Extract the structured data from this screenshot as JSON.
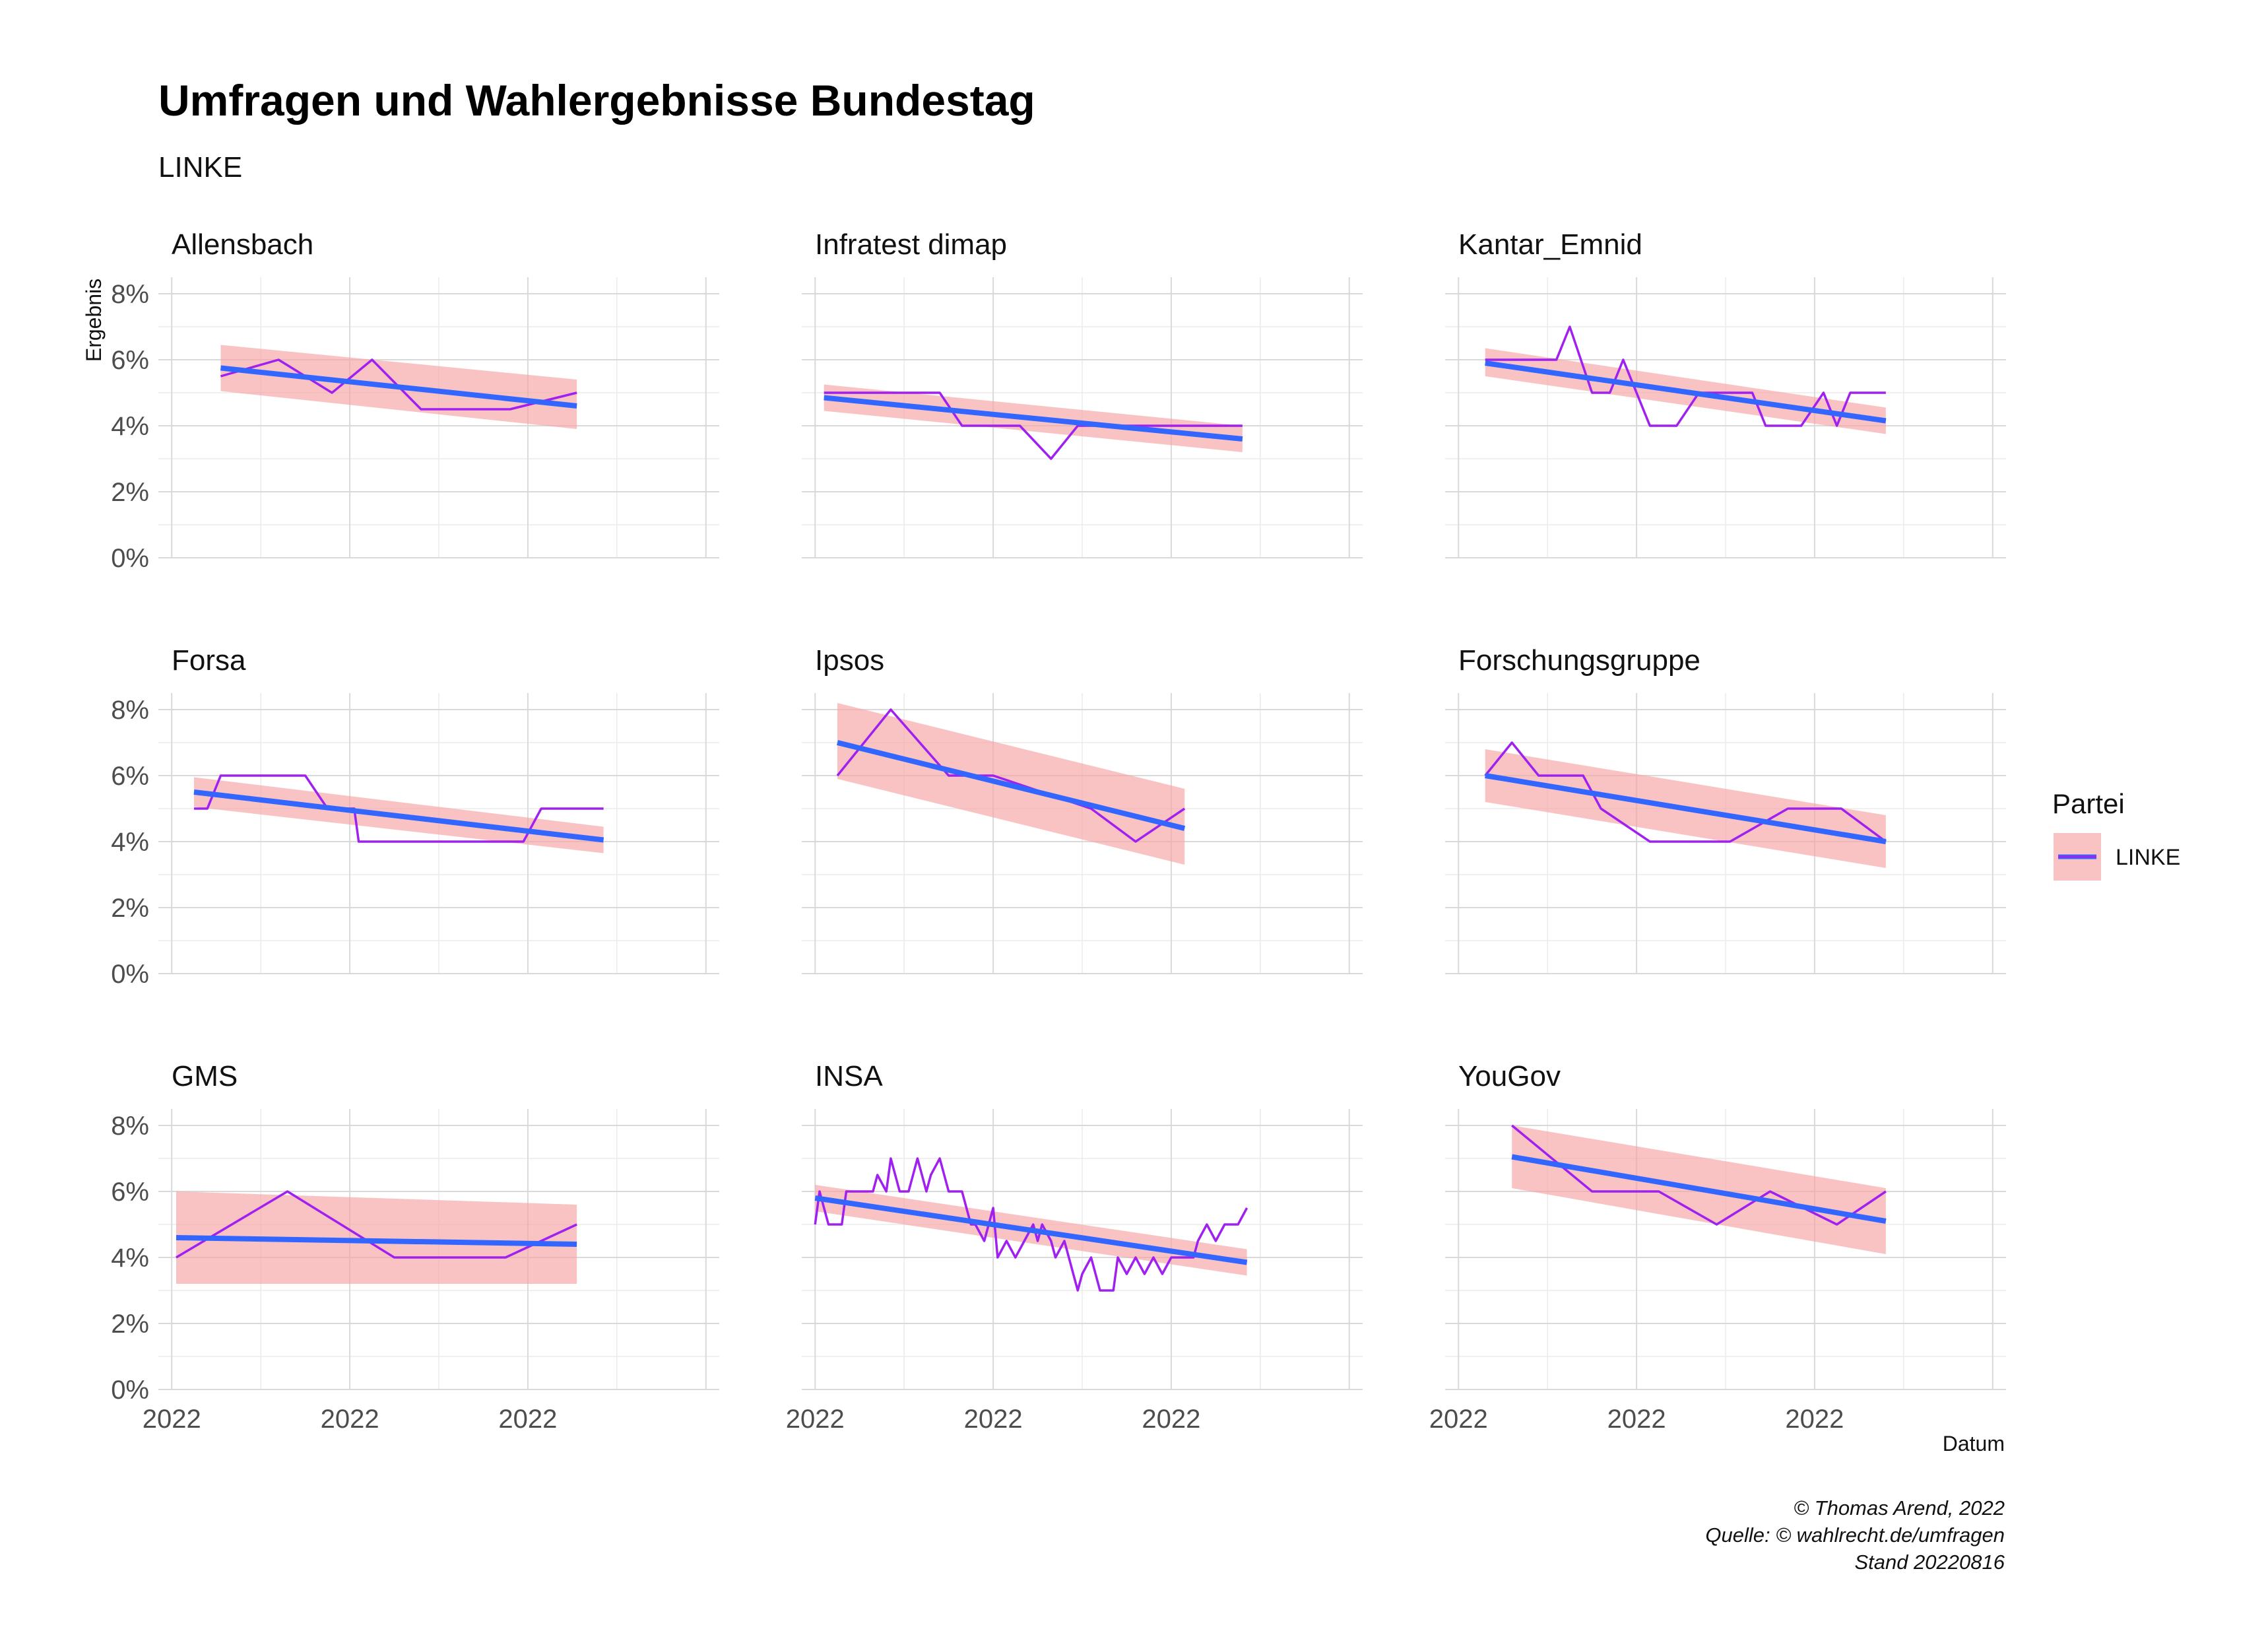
{
  "title": "Umfragen und Wahlergebnisse Bundestag",
  "subtitle": "LINKE",
  "caption": [
    "© Thomas Arend, 2022",
    "Quelle: © wahlrecht.de/umfragen",
    "Stand 20220816"
  ],
  "legend": {
    "title": "Partei",
    "entries": [
      {
        "label": "LINKE",
        "line_color": "#a020f0",
        "trend_color": "#3366ff",
        "ribbon_color": "#f8a3a3"
      }
    ]
  },
  "colors": {
    "series": "#a020f0",
    "trend": "#3366ff",
    "ribbon": "#f8a3a3"
  },
  "chart_data": {
    "type": "line",
    "facet_layout": "3x3",
    "ylabel": "Ergebnis",
    "xlabel": "Datum",
    "ylim": [
      0,
      8.5
    ],
    "xlim": [
      -0.3,
      12.3
    ],
    "yticks": [
      0,
      2,
      4,
      6,
      8
    ],
    "ytick_labels": [
      "0%",
      "2%",
      "4%",
      "6%",
      "8%"
    ],
    "xticks": [
      0,
      4,
      8,
      12
    ],
    "xtick_labels": [
      "2022",
      "2022",
      "2022",
      ""
    ],
    "grid": true,
    "legend_position": "right",
    "panels": [
      {
        "name": "Allensbach",
        "x": [
          1.1,
          2.4,
          3.6,
          4.5,
          5.6,
          6.5,
          7.6,
          8.2,
          9.1
        ],
        "y": [
          5.5,
          6.0,
          5.0,
          6.0,
          4.5,
          4.5,
          4.5,
          4.7,
          5.0
        ],
        "trend": {
          "x": [
            1.1,
            9.1
          ],
          "y": [
            5.75,
            4.6
          ],
          "lo": [
            5.05,
            3.9
          ],
          "hi": [
            6.45,
            5.4
          ]
        }
      },
      {
        "name": "Infratest dimap",
        "x": [
          0.2,
          2.8,
          3.3,
          4.6,
          5.3,
          5.9,
          7.2,
          7.7,
          9.6
        ],
        "y": [
          5.0,
          5.0,
          4.0,
          4.0,
          3.0,
          4.0,
          4.0,
          4.0,
          4.0
        ],
        "trend": {
          "x": [
            0.2,
            9.6
          ],
          "y": [
            4.85,
            3.6
          ],
          "lo": [
            4.45,
            3.2
          ],
          "hi": [
            5.25,
            4.0
          ]
        }
      },
      {
        "name": "Kantar_Emnid",
        "x": [
          0.6,
          2.2,
          2.5,
          3.0,
          3.4,
          3.7,
          4.3,
          4.9,
          5.4,
          6.6,
          6.9,
          7.7,
          8.2,
          8.5,
          8.8,
          9.6
        ],
        "y": [
          6.0,
          6.0,
          7.0,
          5.0,
          5.0,
          6.0,
          4.0,
          4.0,
          5.0,
          5.0,
          4.0,
          4.0,
          5.0,
          4.0,
          5.0,
          5.0
        ],
        "trend": {
          "x": [
            0.6,
            9.6
          ],
          "y": [
            5.9,
            4.15
          ],
          "lo": [
            5.5,
            3.75
          ],
          "hi": [
            6.35,
            4.55
          ]
        }
      },
      {
        "name": "Forsa",
        "x": [
          0.5,
          0.8,
          1.1,
          3.0,
          3.5,
          4.1,
          4.2,
          7.9,
          8.3,
          9.7
        ],
        "y": [
          5.0,
          5.0,
          6.0,
          6.0,
          5.0,
          5.0,
          4.0,
          4.0,
          5.0,
          5.0
        ],
        "trend": {
          "x": [
            0.5,
            9.7
          ],
          "y": [
            5.5,
            4.05
          ],
          "lo": [
            5.05,
            3.65
          ],
          "hi": [
            5.95,
            4.45
          ]
        }
      },
      {
        "name": "Ipsos",
        "x": [
          0.5,
          1.7,
          3.0,
          4.0,
          6.2,
          7.2,
          8.3
        ],
        "y": [
          6.0,
          8.0,
          6.0,
          6.0,
          5.0,
          4.0,
          5.0
        ],
        "trend": {
          "x": [
            0.5,
            8.3
          ],
          "y": [
            7.0,
            4.4
          ],
          "lo": [
            5.9,
            3.3
          ],
          "hi": [
            8.2,
            5.6
          ]
        }
      },
      {
        "name": "Forschungsgruppe",
        "x": [
          0.6,
          1.2,
          1.8,
          2.8,
          3.2,
          4.3,
          6.1,
          7.4,
          8.6,
          9.6
        ],
        "y": [
          6.0,
          7.0,
          6.0,
          6.0,
          5.0,
          4.0,
          4.0,
          5.0,
          5.0,
          4.0
        ],
        "trend": {
          "x": [
            0.6,
            9.6
          ],
          "y": [
            6.0,
            4.0
          ],
          "lo": [
            5.2,
            3.2
          ],
          "hi": [
            6.8,
            4.8
          ]
        }
      },
      {
        "name": "GMS",
        "x": [
          0.1,
          2.6,
          5.0,
          7.5,
          9.1
        ],
        "y": [
          4.0,
          6.0,
          4.0,
          4.0,
          5.0
        ],
        "trend": {
          "x": [
            0.1,
            9.1
          ],
          "y": [
            4.6,
            4.4
          ],
          "lo": [
            3.2,
            3.2
          ],
          "hi": [
            6.0,
            5.6
          ]
        }
      },
      {
        "name": "INSA",
        "x": [
          0.0,
          0.1,
          0.3,
          0.6,
          0.7,
          1.3,
          1.4,
          1.6,
          1.7,
          1.9,
          2.1,
          2.3,
          2.5,
          2.6,
          2.8,
          3.0,
          3.1,
          3.3,
          3.5,
          3.6,
          3.8,
          4.0,
          4.1,
          4.3,
          4.5,
          4.7,
          4.9,
          5.0,
          5.1,
          5.3,
          5.4,
          5.6,
          5.7,
          5.9,
          6.0,
          6.2,
          6.4,
          6.5,
          6.7,
          6.8,
          7.0,
          7.2,
          7.4,
          7.6,
          7.8,
          8.0,
          8.2,
          8.3,
          8.5,
          8.6,
          8.8,
          9.0,
          9.2,
          9.5,
          9.7
        ],
        "y": [
          5.0,
          6.0,
          5.0,
          5.0,
          6.0,
          6.0,
          6.5,
          6.0,
          7.0,
          6.0,
          6.0,
          7.0,
          6.0,
          6.5,
          7.0,
          6.0,
          6.0,
          6.0,
          5.0,
          5.0,
          4.5,
          5.5,
          4.0,
          4.5,
          4.0,
          4.5,
          5.0,
          4.5,
          5.0,
          4.5,
          4.0,
          4.5,
          4.0,
          3.0,
          3.5,
          4.0,
          3.0,
          3.0,
          3.0,
          4.0,
          3.5,
          4.0,
          3.5,
          4.0,
          3.5,
          4.0,
          4.0,
          4.0,
          4.0,
          4.5,
          5.0,
          4.5,
          5.0,
          5.0,
          5.5
        ],
        "trend": {
          "x": [
            0.0,
            9.7
          ],
          "y": [
            5.8,
            3.85
          ],
          "lo": [
            5.4,
            3.45
          ],
          "hi": [
            6.2,
            4.25
          ]
        }
      },
      {
        "name": "YouGov",
        "x": [
          1.2,
          3.0,
          4.5,
          5.8,
          7.0,
          8.5,
          9.6
        ],
        "y": [
          8.0,
          6.0,
          6.0,
          5.0,
          6.0,
          5.0,
          6.0
        ],
        "trend": {
          "x": [
            1.2,
            9.6
          ],
          "y": [
            7.05,
            5.1
          ],
          "lo": [
            6.1,
            4.1
          ],
          "hi": [
            8.0,
            6.1
          ]
        }
      }
    ]
  }
}
